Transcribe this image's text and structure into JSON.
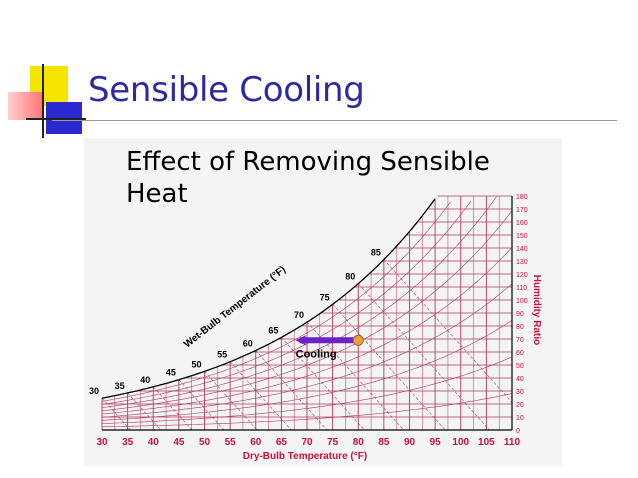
{
  "slide": {
    "title": "Sensible Cooling",
    "subtitle_line1": "Effect of Removing Sensible",
    "subtitle_line2": "Heat"
  },
  "chart": {
    "x_axis_label": "Dry-Bulb Temperature (°F)",
    "x_ticks": [
      "30",
      "35",
      "40",
      "45",
      "50",
      "55",
      "60",
      "65",
      "70",
      "75",
      "80",
      "85",
      "90",
      "95",
      "100",
      "105",
      "110"
    ],
    "y_axis_label": "Humidity Ratio",
    "y_ticks": [
      "0",
      "10",
      "20",
      "30",
      "40",
      "50",
      "60",
      "70",
      "80",
      "90",
      "100",
      "110",
      "120",
      "130",
      "140",
      "150",
      "160",
      "170",
      "180"
    ],
    "wet_bulb_label": "Wet-Bulb Temperature (°F)",
    "saturation_labels": [
      "30",
      "35",
      "40",
      "45",
      "50",
      "55",
      "60",
      "65",
      "70",
      "75",
      "80",
      "85"
    ],
    "process_label": "Cooling",
    "process": {
      "from_db": 80,
      "to_db": 67,
      "humidity_ratio": 69
    },
    "colors": {
      "grid": "#b03a5b",
      "arrow": "#6b22c9",
      "state_point": "#e8a040",
      "axis_text": "#c0143c",
      "title": "#2a2aa6"
    }
  }
}
